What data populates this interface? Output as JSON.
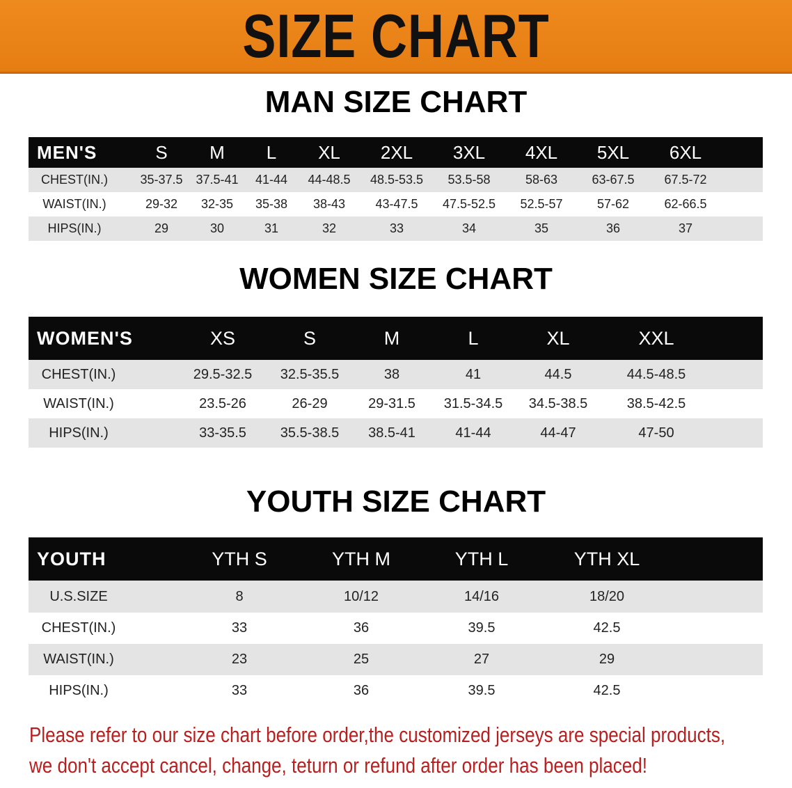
{
  "banner_title": "SIZE CHART",
  "colors": {
    "banner": "#ef8a1f",
    "header_row": "#0a0a0a",
    "stripe": "#e4e4e4",
    "footer_text": "#b8201f"
  },
  "men": {
    "title": "MAN SIZE CHART",
    "header": [
      "MEN'S",
      "S",
      "M",
      "L",
      "XL",
      "2XL",
      "3XL",
      "4XL",
      "5XL",
      "6XL"
    ],
    "rows": [
      [
        "CHEST(IN.)",
        "35-37.5",
        "37.5-41",
        "41-44",
        "44-48.5",
        "48.5-53.5",
        "53.5-58",
        "58-63",
        "63-67.5",
        "67.5-72"
      ],
      [
        "WAIST(IN.)",
        "29-32",
        "32-35",
        "35-38",
        "38-43",
        "43-47.5",
        "47.5-52.5",
        "52.5-57",
        "57-62",
        "62-66.5"
      ],
      [
        "HIPS(IN.)",
        "29",
        "30",
        "31",
        "32",
        "33",
        "34",
        "35",
        "36",
        "37"
      ]
    ]
  },
  "women": {
    "title": "WOMEN SIZE CHART",
    "header": [
      "WOMEN'S",
      "XS",
      "S",
      "M",
      "L",
      "XL",
      "XXL"
    ],
    "rows": [
      [
        "CHEST(IN.)",
        "29.5-32.5",
        "32.5-35.5",
        "38",
        "41",
        "44.5",
        "44.5-48.5"
      ],
      [
        "WAIST(IN.)",
        "23.5-26",
        "26-29",
        "29-31.5",
        "31.5-34.5",
        "34.5-38.5",
        "38.5-42.5"
      ],
      [
        "HIPS(IN.)",
        "33-35.5",
        "35.5-38.5",
        "38.5-41",
        "41-44",
        "44-47",
        "47-50"
      ]
    ]
  },
  "youth": {
    "title": "YOUTH SIZE CHART",
    "header": [
      "YOUTH",
      "YTH S",
      "YTH M",
      "YTH L",
      "YTH XL"
    ],
    "rows": [
      [
        "U.S.SIZE",
        "8",
        "10/12",
        "14/16",
        "18/20"
      ],
      [
        "CHEST(IN.)",
        "33",
        "36",
        "39.5",
        "42.5"
      ],
      [
        "WAIST(IN.)",
        "23",
        "25",
        "27",
        "29"
      ],
      [
        "HIPS(IN.)",
        "33",
        "36",
        "39.5",
        "42.5"
      ]
    ]
  },
  "footer": {
    "line1": "Please refer to our size chart before order,the customized jerseys are special products,",
    "line2": "we don't accept cancel, change, teturn or refund after order has been placed!"
  }
}
